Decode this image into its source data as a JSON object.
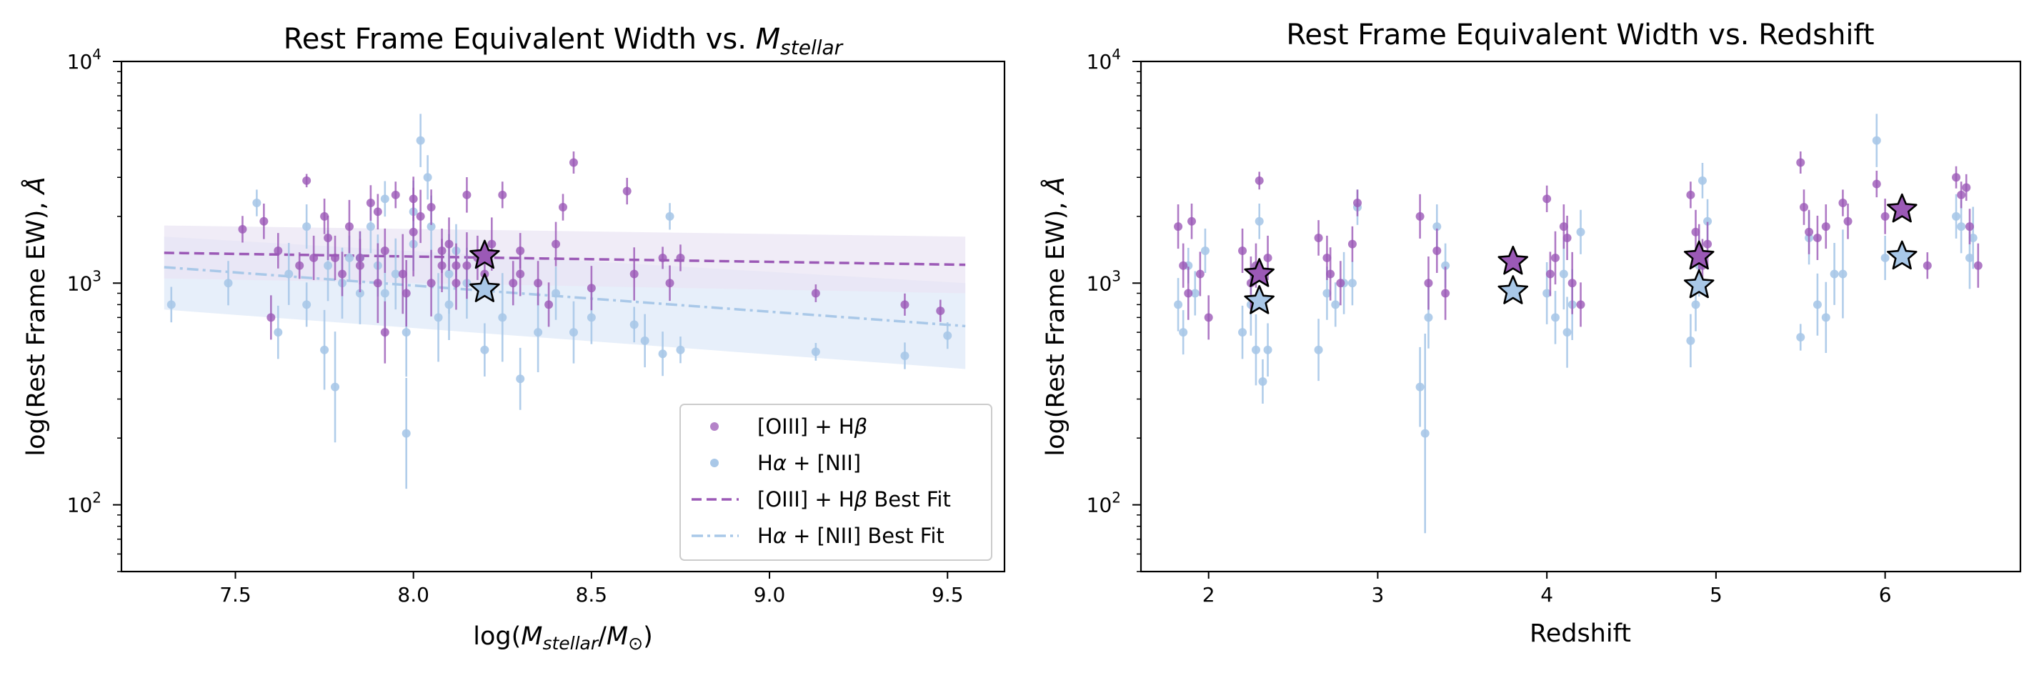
{
  "colors": {
    "purple": "#9b59b6",
    "blue": "#a9c8e8",
    "purple_band": "#e9e4f4",
    "blue_band": "#dfe9f8"
  },
  "chart_data": [
    {
      "type": "scatter",
      "title_prefix": "Rest Frame Equivalent Width vs. ",
      "title_math": "M",
      "title_math_sub": "stellar",
      "xlabel_prefix": "log(",
      "xlabel_m1": "M",
      "xlabel_sub1": "stellar",
      "xlabel_slash": "/",
      "xlabel_m2": "M",
      "xlabel_sub2": "⊙",
      "xlabel_suffix": ")",
      "ylabel_prefix": "log(Rest Frame EW), ",
      "ylabel_unit": "Å",
      "xlim": [
        7.18,
        9.66
      ],
      "ylim": [
        50,
        10000
      ],
      "xticks": [
        7.5,
        8.0,
        8.5,
        9.0,
        9.5
      ],
      "xtick_labels": [
        "7.5",
        "8.0",
        "8.5",
        "9.0",
        "9.5"
      ],
      "ytick_base": "10",
      "ytick_exps": [
        "2",
        "3",
        "4"
      ],
      "yticks": [
        100,
        1000,
        10000
      ],
      "legend": {
        "placement": "lower-right",
        "oiii_prefix": "[OIII] + H",
        "oiii_greek": "β",
        "ha_greek": "α",
        "ha_suffix": " + [NII]",
        "oiii_fit_prefix": "[OIII] + H",
        "oiii_fit_greek": "β",
        "oiii_fit_suffix": " Best Fit",
        "ha_fit_greek": "α",
        "ha_fit_suffix": " + [NII] Best Fit"
      },
      "fits": {
        "oiii": {
          "x": [
            7.3,
            9.55
          ],
          "y": [
            1370,
            1210
          ],
          "band_low": [
            1050,
            900
          ],
          "band_high": [
            1820,
            1620
          ]
        },
        "ha": {
          "x": [
            7.3,
            9.55
          ],
          "y": [
            1180,
            640
          ],
          "band_low": [
            760,
            410
          ],
          "band_high": [
            1620,
            1000
          ]
        }
      },
      "stars": {
        "x": [
          8.2,
          8.2
        ],
        "y": [
          1330,
          940
        ]
      },
      "series": [
        {
          "name": "[OIII] + Hβ",
          "x": [
            7.58,
            7.52,
            7.6,
            7.62,
            7.68,
            7.7,
            7.72,
            7.75,
            7.78,
            7.8,
            7.82,
            7.85,
            7.88,
            7.9,
            7.92,
            7.95,
            7.97,
            8.0,
            8.02,
            8.05,
            8.08,
            8.1,
            8.12,
            8.15,
            8.18,
            8.22,
            8.25,
            8.28,
            8.3,
            8.35,
            8.4,
            8.42,
            8.45,
            8.5,
            8.6,
            8.62,
            8.7,
            8.72,
            8.75,
            9.13,
            9.38,
            9.48,
            7.76,
            7.9,
            8.0,
            8.05,
            8.15,
            8.3,
            7.98,
            7.85,
            8.2,
            8.12,
            8.38,
            7.92,
            8.08
          ],
          "y": [
            1900,
            1750,
            700,
            1400,
            1200,
            2900,
            1300,
            2000,
            1300,
            1100,
            1800,
            1200,
            2300,
            1000,
            1400,
            2500,
            1100,
            2400,
            2000,
            2200,
            1400,
            1500,
            1200,
            1200,
            1300,
            1500,
            2500,
            1000,
            1400,
            1000,
            1500,
            2200,
            3500,
            950,
            2600,
            1100,
            1300,
            1000,
            1300,
            900,
            800,
            750,
            1600,
            2100,
            1700,
            1000,
            2500,
            1100,
            900,
            1300,
            1100,
            1000,
            800,
            600,
            1200
          ],
          "err": [
            0.08,
            0.06,
            0.1,
            0.08,
            0.06,
            0.03,
            0.1,
            0.08,
            0.1,
            0.1,
            0.12,
            0.12,
            0.08,
            0.18,
            0.1,
            0.06,
            0.18,
            0.1,
            0.12,
            0.08,
            0.1,
            0.12,
            0.1,
            0.15,
            0.1,
            0.12,
            0.06,
            0.1,
            0.08,
            0.1,
            0.1,
            0.06,
            0.05,
            0.1,
            0.06,
            0.12,
            0.05,
            0.08,
            0.06,
            0.04,
            0.05,
            0.05,
            0.1,
            0.08,
            0.2,
            0.15,
            0.08,
            0.1,
            0.15,
            0.12,
            0.1,
            0.12,
            0.1,
            0.14,
            0.12
          ]
        },
        {
          "name": "Hα + [NII]",
          "x": [
            7.32,
            7.48,
            7.56,
            7.62,
            7.65,
            7.7,
            7.75,
            7.78,
            7.8,
            7.82,
            7.85,
            7.88,
            7.9,
            7.92,
            7.95,
            7.98,
            8.0,
            8.02,
            8.05,
            8.07,
            8.1,
            8.12,
            8.15,
            8.2,
            8.25,
            8.3,
            8.35,
            8.4,
            8.45,
            8.5,
            8.62,
            8.65,
            8.7,
            8.72,
            8.75,
            9.13,
            9.38,
            9.5,
            7.76,
            7.98,
            8.04,
            7.92,
            8.0,
            8.1,
            7.7,
            7.85
          ],
          "y": [
            800,
            1000,
            2300,
            600,
            1100,
            800,
            500,
            340,
            1000,
            1300,
            900,
            1800,
            1200,
            2400,
            1100,
            210,
            2100,
            4400,
            1800,
            700,
            800,
            1400,
            1000,
            500,
            700,
            370,
            600,
            900,
            600,
            700,
            650,
            550,
            480,
            2000,
            500,
            490,
            470,
            580,
            1200,
            600,
            3000,
            900,
            1500,
            1100,
            1800,
            1300
          ],
          "err": [
            0.08,
            0.1,
            0.06,
            0.12,
            0.14,
            0.1,
            0.18,
            0.25,
            0.16,
            0.1,
            0.14,
            0.12,
            0.14,
            0.08,
            0.16,
            0.25,
            0.14,
            0.12,
            0.14,
            0.2,
            0.16,
            0.12,
            0.16,
            0.12,
            0.2,
            0.14,
            0.18,
            0.12,
            0.14,
            0.12,
            0.08,
            0.12,
            0.1,
            0.06,
            0.06,
            0.04,
            0.06,
            0.06,
            0.16,
            0.2,
            0.1,
            0.2,
            0.12,
            0.18,
            0.1,
            0.12
          ]
        }
      ]
    },
    {
      "type": "scatter",
      "title": "Rest Frame Equivalent Width vs. Redshift",
      "xlabel": "Redshift",
      "ylabel_prefix": "log(Rest Frame EW), ",
      "ylabel_unit": "Å",
      "xlim": [
        1.6,
        6.8
      ],
      "ylim": [
        50,
        10000
      ],
      "xticks": [
        2,
        3,
        4,
        5,
        6
      ],
      "xtick_labels": [
        "2",
        "3",
        "4",
        "5",
        "6"
      ],
      "ytick_base": "10",
      "ytick_exps": [
        "2",
        "3",
        "4"
      ],
      "yticks": [
        100,
        1000,
        10000
      ],
      "stars": {
        "x": [
          2.3,
          3.8,
          4.9,
          6.1,
          2.3,
          3.8,
          4.9,
          6.1
        ],
        "y": [
          1100,
          1250,
          1320,
          2150,
          830,
          920,
          980,
          1320
        ],
        "kind": [
          "purple",
          "purple",
          "purple",
          "purple",
          "blue",
          "blue",
          "blue",
          "blue"
        ]
      },
      "series": [
        {
          "name": "[OIII] + Hβ",
          "x": [
            1.82,
            1.85,
            1.88,
            1.9,
            1.95,
            2.0,
            2.2,
            2.25,
            2.28,
            2.3,
            2.35,
            2.65,
            2.7,
            2.72,
            2.78,
            2.85,
            2.88,
            3.25,
            3.3,
            3.35,
            3.4,
            4.0,
            4.02,
            4.05,
            4.1,
            4.12,
            4.15,
            4.2,
            4.85,
            4.88,
            4.9,
            4.92,
            4.95,
            5.5,
            5.52,
            5.55,
            5.6,
            5.65,
            5.75,
            5.78,
            5.95,
            6.0,
            6.25,
            6.42,
            6.45,
            6.48,
            6.5,
            6.55
          ],
          "y": [
            1800,
            1200,
            900,
            1900,
            1100,
            700,
            1400,
            1000,
            1200,
            2900,
            1300,
            1600,
            1300,
            1100,
            1000,
            1500,
            2300,
            2000,
            1000,
            1400,
            900,
            2400,
            1100,
            1300,
            1800,
            1600,
            1000,
            800,
            2500,
            1700,
            1400,
            1200,
            1500,
            3500,
            2200,
            1700,
            1600,
            1800,
            2300,
            1900,
            2800,
            2000,
            1200,
            3000,
            2500,
            2700,
            1800,
            1200
          ],
          "err": [
            0.1,
            0.1,
            0.12,
            0.08,
            0.1,
            0.1,
            0.1,
            0.12,
            0.1,
            0.04,
            0.1,
            0.08,
            0.1,
            0.12,
            0.1,
            0.08,
            0.06,
            0.1,
            0.12,
            0.1,
            0.12,
            0.06,
            0.1,
            0.12,
            0.1,
            0.1,
            0.14,
            0.1,
            0.06,
            0.1,
            0.12,
            0.12,
            0.1,
            0.05,
            0.08,
            0.1,
            0.1,
            0.1,
            0.06,
            0.08,
            0.06,
            0.08,
            0.06,
            0.05,
            0.06,
            0.06,
            0.08,
            0.1
          ]
        },
        {
          "name": "Hα + [NII]",
          "x": [
            1.82,
            1.85,
            1.88,
            1.92,
            1.98,
            2.2,
            2.25,
            2.28,
            2.3,
            2.32,
            2.35,
            2.65,
            2.7,
            2.75,
            2.8,
            2.85,
            2.88,
            3.25,
            3.28,
            3.3,
            3.35,
            3.4,
            4.0,
            4.05,
            4.1,
            4.12,
            4.15,
            4.2,
            4.85,
            4.88,
            4.9,
            4.92,
            4.95,
            5.5,
            5.55,
            5.6,
            5.65,
            5.7,
            5.75,
            5.95,
            6.0,
            6.42,
            6.45,
            6.5,
            6.52
          ],
          "y": [
            800,
            600,
            1200,
            900,
            1400,
            600,
            800,
            500,
            1900,
            360,
            500,
            500,
            900,
            800,
            1000,
            1000,
            2200,
            340,
            210,
            700,
            1800,
            1200,
            900,
            700,
            1100,
            600,
            800,
            1700,
            550,
            800,
            1200,
            2900,
            1900,
            570,
            1600,
            800,
            700,
            1100,
            1100,
            4400,
            1300,
            2000,
            1800,
            1300,
            1600
          ],
          "err": [
            0.12,
            0.1,
            0.08,
            0.1,
            0.1,
            0.12,
            0.14,
            0.16,
            0.08,
            0.1,
            0.12,
            0.14,
            0.12,
            0.1,
            0.14,
            0.1,
            0.08,
            0.18,
            0.45,
            0.14,
            0.1,
            0.1,
            0.14,
            0.12,
            0.16,
            0.16,
            0.16,
            0.1,
            0.12,
            0.12,
            0.14,
            0.08,
            0.1,
            0.06,
            0.12,
            0.14,
            0.16,
            0.14,
            0.2,
            0.12,
            0.1,
            0.1,
            0.12,
            0.14,
            0.14
          ]
        }
      ]
    }
  ]
}
